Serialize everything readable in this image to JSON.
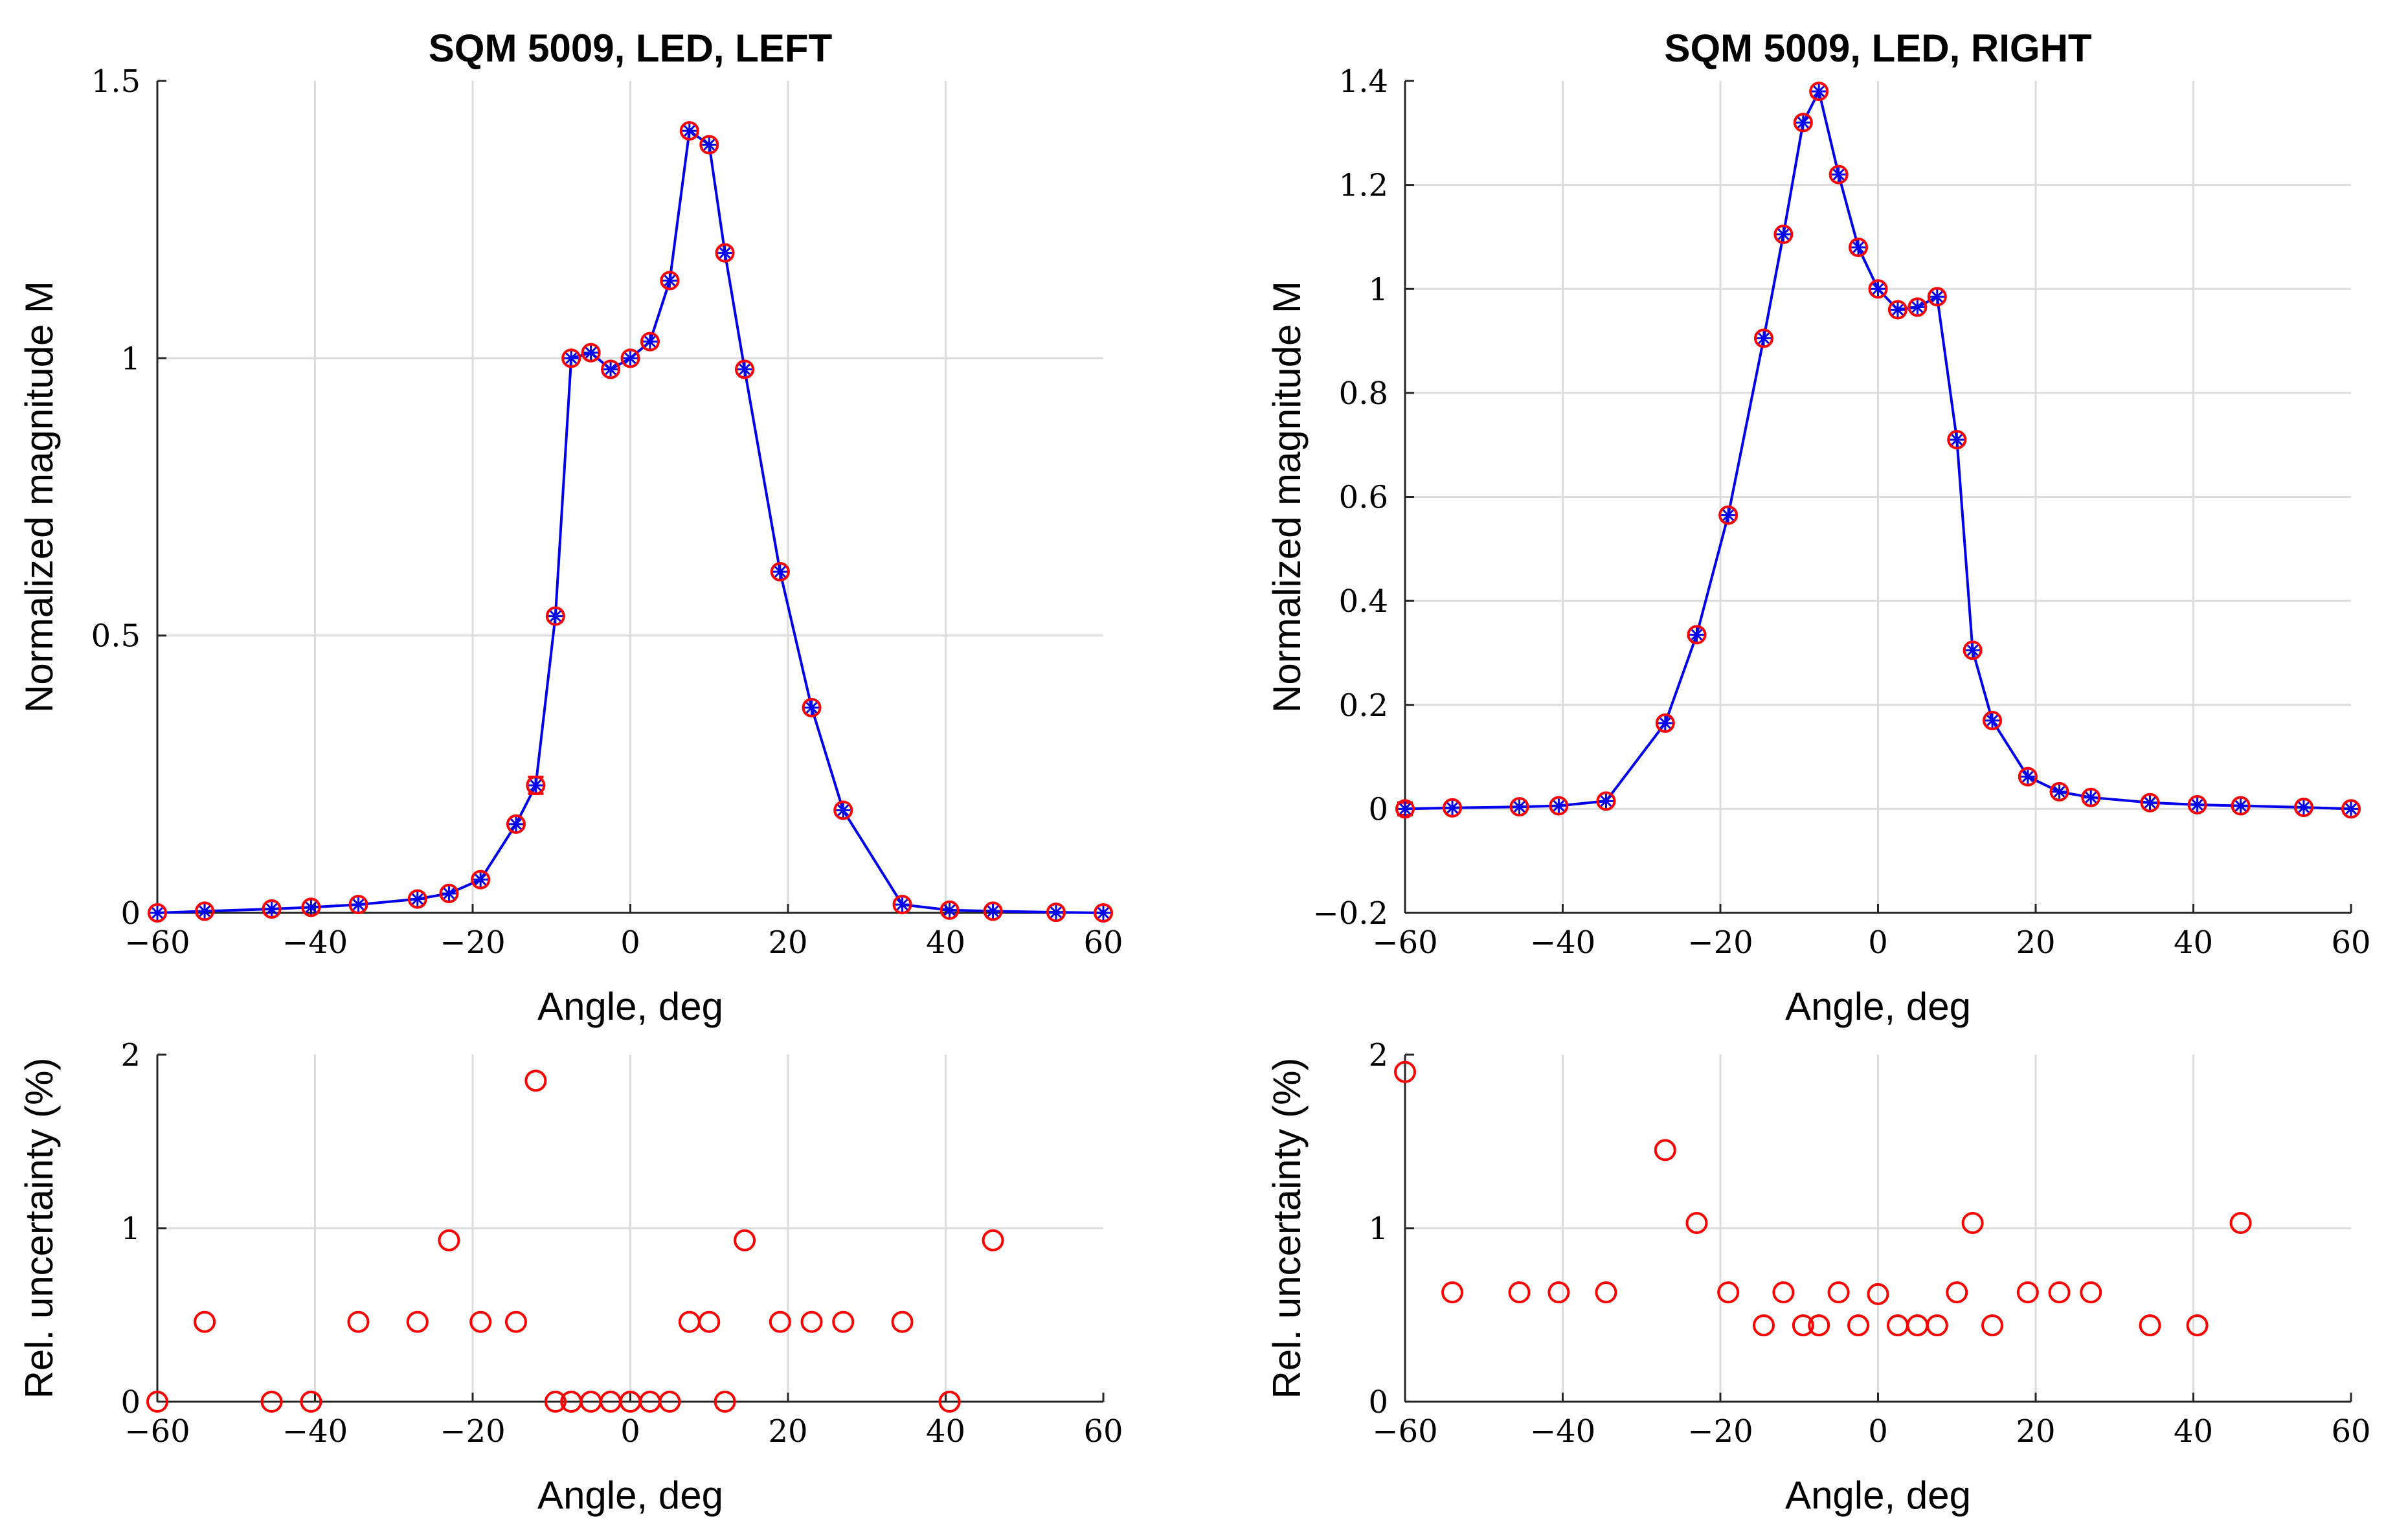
{
  "chart_data": [
    {
      "id": "main-left",
      "type": "line",
      "title": "SQM 5009, LED, LEFT",
      "xlabel": "Angle, deg",
      "ylabel": "Normalized magnitude M",
      "xlim": [
        -60,
        60
      ],
      "ylim": [
        0,
        1.5
      ],
      "xticks": [
        -60,
        -40,
        -20,
        0,
        20,
        40,
        60
      ],
      "xtick_labels": [
        "−60",
        "−40",
        "−20",
        "0",
        "20",
        "40",
        "60"
      ],
      "yticks": [
        0,
        0.5,
        1,
        1.5
      ],
      "ytick_labels": [
        "0",
        "0.5",
        "1",
        "1.5"
      ],
      "grid": true,
      "x": [
        -60,
        -54,
        -45.5,
        -40.5,
        -34.5,
        -27,
        -23,
        -19,
        -14.5,
        -12,
        -9.5,
        -7.5,
        -5,
        -2.5,
        0,
        2.5,
        5,
        7.5,
        10,
        12,
        14.5,
        19,
        23,
        27,
        34.5,
        40.5,
        46,
        54,
        60
      ],
      "values": [
        0.0,
        0.003,
        0.007,
        0.01,
        0.015,
        0.025,
        0.035,
        0.06,
        0.16,
        0.23,
        0.535,
        1.0,
        1.01,
        0.98,
        1.0,
        1.03,
        1.14,
        1.41,
        1.385,
        1.19,
        0.98,
        0.615,
        0.37,
        0.185,
        0.015,
        0.005,
        0.003,
        0.001,
        0.0
      ],
      "error": [
        0.0,
        0.0,
        0.0,
        0.0,
        0.0,
        0.0,
        0.0,
        0.0,
        0.0,
        0.015,
        0.0,
        0.0,
        0.0,
        0.0,
        0.0,
        0.0,
        0.0,
        0.0,
        0.0,
        0.0,
        0.0,
        0.0,
        0.0,
        0.0,
        0.0,
        0.0,
        0.0,
        0.0,
        0.0
      ],
      "colors": {
        "line": "#0000ee",
        "marker_edge": "#ff0000",
        "star": "#0000ee"
      }
    },
    {
      "id": "main-right",
      "type": "line",
      "title": "SQM 5009, LED, RIGHT",
      "xlabel": "Angle, deg",
      "ylabel": "Normalized magnitude M",
      "xlim": [
        -60,
        60
      ],
      "ylim": [
        -0.2,
        1.4
      ],
      "xticks": [
        -60,
        -40,
        -20,
        0,
        20,
        40,
        60
      ],
      "xtick_labels": [
        "−60",
        "−40",
        "−20",
        "0",
        "20",
        "40",
        "60"
      ],
      "yticks": [
        -0.2,
        0,
        0.2,
        0.4,
        0.6,
        0.8,
        1,
        1.2,
        1.4
      ],
      "ytick_labels": [
        "−0.2",
        "0",
        "0.2",
        "0.4",
        "0.6",
        "0.8",
        "1",
        "1.2",
        "1.4"
      ],
      "grid": true,
      "x": [
        -60,
        -54,
        -45.5,
        -40.5,
        -34.5,
        -27,
        -23,
        -19,
        -14.5,
        -12,
        -9.5,
        -7.5,
        -5,
        -2.5,
        0,
        2.5,
        5,
        7.5,
        10,
        12,
        14.5,
        19,
        23,
        27,
        34.5,
        40.5,
        46,
        54,
        60
      ],
      "values": [
        0.0,
        0.002,
        0.004,
        0.006,
        0.015,
        0.165,
        0.335,
        0.565,
        0.905,
        1.105,
        1.32,
        1.38,
        1.22,
        1.08,
        1.0,
        0.96,
        0.965,
        0.985,
        0.71,
        0.305,
        0.17,
        0.062,
        0.033,
        0.022,
        0.012,
        0.008,
        0.006,
        0.003,
        0.0
      ],
      "error": [
        0.012,
        0.0,
        0.0,
        0.0,
        0.0,
        0.0,
        0.0,
        0.0,
        0.0,
        0.0,
        0.0,
        0.0,
        0.0,
        0.0,
        0.0,
        0.0,
        0.0,
        0.0,
        0.0,
        0.0,
        0.0,
        0.0,
        0.0,
        0.0,
        0.0,
        0.0,
        0.0,
        0.0,
        0.0
      ],
      "colors": {
        "line": "#0000ee",
        "marker_edge": "#ff0000",
        "star": "#0000ee"
      }
    },
    {
      "id": "unc-left",
      "type": "scatter",
      "title": "",
      "xlabel": "Angle, deg",
      "ylabel": "Rel. uncertainty (%)",
      "xlim": [
        -60,
        60
      ],
      "ylim": [
        0,
        2
      ],
      "xticks": [
        -60,
        -40,
        -20,
        0,
        20,
        40,
        60
      ],
      "xtick_labels": [
        "−60",
        "−40",
        "−20",
        "0",
        "20",
        "40",
        "60"
      ],
      "yticks": [
        0,
        1,
        2
      ],
      "ytick_labels": [
        "0",
        "1",
        "2"
      ],
      "grid": true,
      "x": [
        -60,
        -54,
        -45.5,
        -40.5,
        -34.5,
        -27,
        -23,
        -19,
        -14.5,
        -12,
        -9.5,
        -7.5,
        -5,
        -2.5,
        0,
        2.5,
        5,
        7.5,
        10,
        12,
        14.5,
        19,
        23,
        27,
        34.5,
        40.5,
        46
      ],
      "values": [
        0,
        0.46,
        0,
        0,
        0.46,
        0.46,
        0.93,
        0.46,
        0.46,
        1.85,
        0,
        0,
        0,
        0,
        0,
        0,
        0,
        0.46,
        0.46,
        0,
        0.93,
        0.46,
        0.46,
        0.46,
        0.46,
        0,
        0.93
      ],
      "colors": {
        "marker_edge": "#ff0000"
      }
    },
    {
      "id": "unc-right",
      "type": "scatter",
      "title": "",
      "xlabel": "Angle, deg",
      "ylabel": "Rel. uncertainty (%)",
      "xlim": [
        -60,
        60
      ],
      "ylim": [
        0,
        2
      ],
      "xticks": [
        -60,
        -40,
        -20,
        0,
        20,
        40,
        60
      ],
      "xtick_labels": [
        "−60",
        "−40",
        "−20",
        "0",
        "20",
        "40",
        "60"
      ],
      "yticks": [
        0,
        1,
        2
      ],
      "ytick_labels": [
        "0",
        "1",
        "2"
      ],
      "grid": true,
      "x": [
        -60,
        -54,
        -45.5,
        -40.5,
        -34.5,
        -27,
        -23,
        -19,
        -14.5,
        -12,
        -9.5,
        -7.5,
        -5,
        -2.5,
        0,
        2.5,
        5,
        7.5,
        10,
        12,
        14.5,
        19,
        23,
        27,
        34.5,
        40.5,
        46
      ],
      "values": [
        1.9,
        0.63,
        0.63,
        0.63,
        0.63,
        1.45,
        1.03,
        0.63,
        0.44,
        0.63,
        0.44,
        0.44,
        0.63,
        0.44,
        0.62,
        0.44,
        0.44,
        0.44,
        0.63,
        1.03,
        0.44,
        0.63,
        0.63,
        0.63,
        0.44,
        0.44,
        1.03
      ],
      "colors": {
        "marker_edge": "#ff0000"
      }
    }
  ]
}
